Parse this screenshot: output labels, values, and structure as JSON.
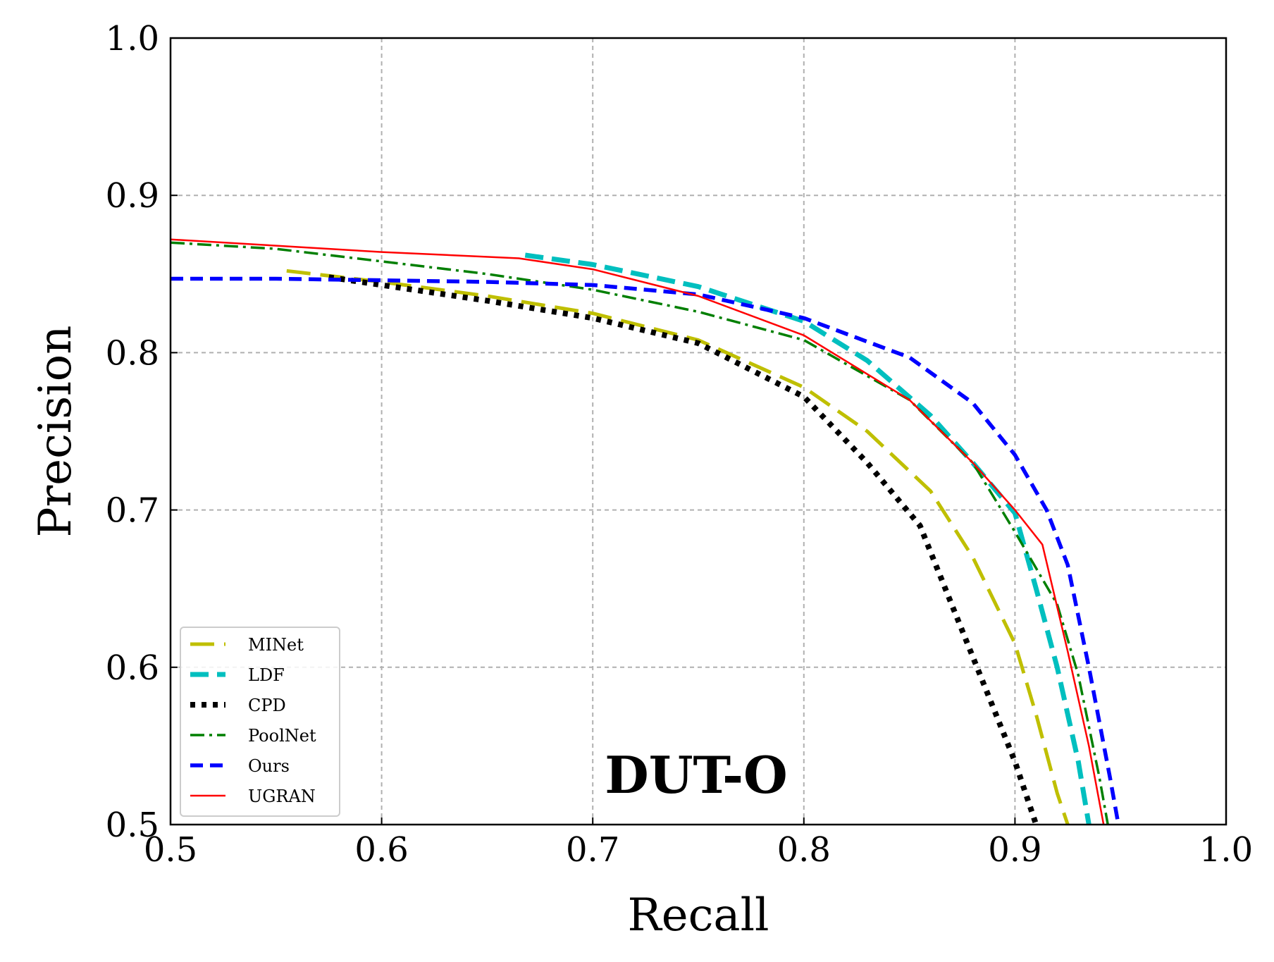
{
  "chart_data": {
    "type": "line",
    "title": "",
    "annotation": "DUT-O",
    "xlabel": "Recall",
    "ylabel": "Precision",
    "xlim": [
      0.5,
      1.0
    ],
    "ylim": [
      0.5,
      1.0
    ],
    "xticks": [
      "0.5",
      "0.6",
      "0.7",
      "0.8",
      "0.9",
      "1.0"
    ],
    "yticks": [
      "0.5",
      "0.6",
      "0.7",
      "0.8",
      "0.9",
      "1.0"
    ],
    "grid": true,
    "legend_position": "bottom-left",
    "series": [
      {
        "name": "MINet",
        "color": "#bfbf00",
        "style": "long-dash",
        "points": [
          [
            0.555,
            0.852
          ],
          [
            0.6,
            0.845
          ],
          [
            0.65,
            0.836
          ],
          [
            0.7,
            0.825
          ],
          [
            0.75,
            0.808
          ],
          [
            0.8,
            0.778
          ],
          [
            0.83,
            0.75
          ],
          [
            0.86,
            0.712
          ],
          [
            0.88,
            0.67
          ],
          [
            0.9,
            0.615
          ],
          [
            0.91,
            0.57
          ],
          [
            0.92,
            0.52
          ],
          [
            0.925,
            0.5
          ]
        ]
      },
      {
        "name": "LDF",
        "color": "#00bfbf",
        "style": "thick-dash",
        "points": [
          [
            0.668,
            0.862
          ],
          [
            0.7,
            0.856
          ],
          [
            0.75,
            0.842
          ],
          [
            0.8,
            0.82
          ],
          [
            0.83,
            0.795
          ],
          [
            0.86,
            0.76
          ],
          [
            0.88,
            0.73
          ],
          [
            0.9,
            0.698
          ],
          [
            0.91,
            0.65
          ],
          [
            0.92,
            0.6
          ],
          [
            0.93,
            0.54
          ],
          [
            0.935,
            0.5
          ]
        ]
      },
      {
        "name": "CPD",
        "color": "#000000",
        "style": "dotted",
        "points": [
          [
            0.575,
            0.848
          ],
          [
            0.6,
            0.843
          ],
          [
            0.65,
            0.833
          ],
          [
            0.7,
            0.822
          ],
          [
            0.75,
            0.806
          ],
          [
            0.8,
            0.772
          ],
          [
            0.83,
            0.73
          ],
          [
            0.855,
            0.69
          ],
          [
            0.87,
            0.64
          ],
          [
            0.885,
            0.59
          ],
          [
            0.9,
            0.54
          ],
          [
            0.91,
            0.5
          ]
        ]
      },
      {
        "name": "PoolNet",
        "color": "#007f00",
        "style": "dash-dot",
        "points": [
          [
            0.5,
            0.87
          ],
          [
            0.55,
            0.866
          ],
          [
            0.6,
            0.858
          ],
          [
            0.65,
            0.85
          ],
          [
            0.7,
            0.84
          ],
          [
            0.75,
            0.826
          ],
          [
            0.8,
            0.808
          ],
          [
            0.85,
            0.77
          ],
          [
            0.88,
            0.73
          ],
          [
            0.9,
            0.686
          ],
          [
            0.92,
            0.64
          ],
          [
            0.93,
            0.595
          ],
          [
            0.94,
            0.53
          ],
          [
            0.944,
            0.5
          ]
        ]
      },
      {
        "name": "Ours",
        "color": "#0000ff",
        "style": "dash",
        "points": [
          [
            0.5,
            0.847
          ],
          [
            0.55,
            0.847
          ],
          [
            0.6,
            0.846
          ],
          [
            0.65,
            0.845
          ],
          [
            0.7,
            0.843
          ],
          [
            0.75,
            0.837
          ],
          [
            0.8,
            0.822
          ],
          [
            0.85,
            0.797
          ],
          [
            0.88,
            0.768
          ],
          [
            0.9,
            0.735
          ],
          [
            0.915,
            0.7
          ],
          [
            0.925,
            0.665
          ],
          [
            0.935,
            0.6
          ],
          [
            0.945,
            0.53
          ],
          [
            0.949,
            0.5
          ]
        ]
      },
      {
        "name": "UGRAN",
        "color": "#ff0000",
        "style": "solid",
        "points": [
          [
            0.5,
            0.872
          ],
          [
            0.55,
            0.868
          ],
          [
            0.6,
            0.864
          ],
          [
            0.665,
            0.86
          ],
          [
            0.7,
            0.853
          ],
          [
            0.75,
            0.836
          ],
          [
            0.8,
            0.811
          ],
          [
            0.85,
            0.77
          ],
          [
            0.88,
            0.73
          ],
          [
            0.9,
            0.7
          ],
          [
            0.913,
            0.678
          ],
          [
            0.925,
            0.61
          ],
          [
            0.935,
            0.55
          ],
          [
            0.942,
            0.5
          ]
        ]
      }
    ]
  }
}
